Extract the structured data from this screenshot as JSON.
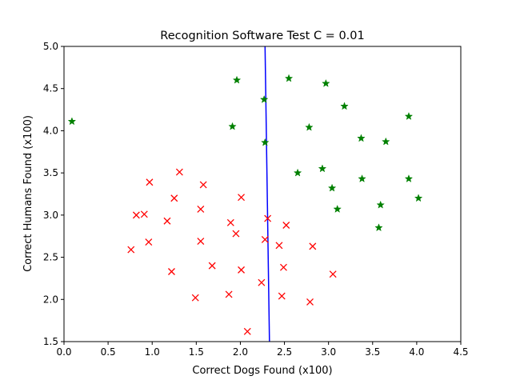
{
  "chart_data": {
    "type": "scatter",
    "title": "Recognition Software Test C = 0.01",
    "xlabel": "Correct Dogs Found (x100)",
    "ylabel": "Correct Humans Found (x100)",
    "xlim": [
      0.0,
      4.5
    ],
    "ylim": [
      1.5,
      5.0
    ],
    "xticks": [
      "0.0",
      "0.5",
      "1.0",
      "1.5",
      "2.0",
      "2.5",
      "3.0",
      "3.5",
      "4.0",
      "4.5"
    ],
    "yticks": [
      "1.5",
      "2.0",
      "2.5",
      "3.0",
      "3.5",
      "4.0",
      "4.5",
      "5.0"
    ],
    "grid": false,
    "series": [
      {
        "marker": "x",
        "color": "#ff0000",
        "points": [
          [
            0.76,
            2.59
          ],
          [
            0.82,
            3.0
          ],
          [
            0.91,
            3.01
          ],
          [
            0.96,
            2.68
          ],
          [
            0.97,
            3.39
          ],
          [
            1.17,
            2.93
          ],
          [
            1.22,
            2.33
          ],
          [
            1.25,
            3.2
          ],
          [
            1.31,
            3.51
          ],
          [
            1.49,
            2.02
          ],
          [
            1.55,
            3.07
          ],
          [
            1.55,
            2.69
          ],
          [
            1.58,
            3.36
          ],
          [
            1.68,
            2.4
          ],
          [
            1.87,
            2.06
          ],
          [
            1.89,
            2.91
          ],
          [
            1.95,
            2.78
          ],
          [
            2.01,
            2.35
          ],
          [
            2.01,
            3.21
          ],
          [
            2.08,
            1.62
          ],
          [
            2.24,
            2.2
          ],
          [
            2.28,
            2.71
          ],
          [
            2.31,
            2.96
          ],
          [
            2.44,
            2.64
          ],
          [
            2.47,
            2.04
          ],
          [
            2.49,
            2.38
          ],
          [
            2.52,
            2.88
          ],
          [
            2.79,
            1.97
          ],
          [
            2.82,
            2.63
          ],
          [
            3.05,
            2.3
          ]
        ]
      },
      {
        "marker": "star",
        "color": "#008000",
        "points": [
          [
            0.09,
            4.11
          ],
          [
            1.91,
            4.05
          ],
          [
            1.96,
            4.6
          ],
          [
            2.27,
            4.37
          ],
          [
            2.28,
            3.86
          ],
          [
            2.55,
            4.62
          ],
          [
            2.65,
            3.5
          ],
          [
            2.78,
            4.04
          ],
          [
            2.93,
            3.55
          ],
          [
            2.97,
            4.56
          ],
          [
            3.04,
            3.32
          ],
          [
            3.1,
            3.07
          ],
          [
            3.18,
            4.29
          ],
          [
            3.37,
            3.91
          ],
          [
            3.38,
            3.43
          ],
          [
            3.57,
            2.85
          ],
          [
            3.59,
            3.12
          ],
          [
            3.65,
            3.87
          ],
          [
            3.91,
            4.17
          ],
          [
            3.91,
            3.43
          ],
          [
            4.02,
            3.2
          ]
        ]
      }
    ],
    "boundary_line": {
      "color": "#0000ff",
      "points": [
        [
          2.28,
          5.0
        ],
        [
          2.33,
          1.5
        ]
      ]
    }
  }
}
